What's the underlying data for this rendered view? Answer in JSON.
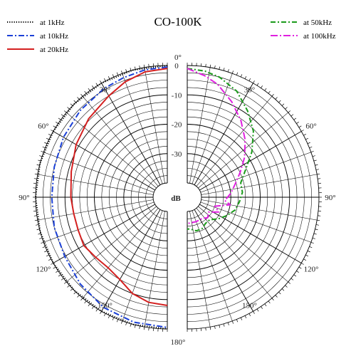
{
  "chart_data": {
    "type": "polar",
    "title": "CO-100K",
    "radial_unit": "dB",
    "radial_range_db": [
      -40,
      0
    ],
    "radial_ticks": [
      {
        "db": 0,
        "label": "0"
      },
      {
        "db": -10,
        "label": "-10"
      },
      {
        "db": -20,
        "label": "-20"
      },
      {
        "db": -30,
        "label": "-30"
      }
    ],
    "angle_ticks": [
      {
        "deg": 0,
        "label": "0°"
      },
      {
        "deg": 30,
        "label": "30°"
      },
      {
        "deg": 60,
        "label": "60°"
      },
      {
        "deg": 90,
        "label": "90°"
      },
      {
        "deg": 120,
        "label": "120°"
      },
      {
        "deg": 150,
        "label": "150°"
      },
      {
        "deg": 180,
        "label": "180°"
      }
    ],
    "left_series": [
      {
        "name": "at 1kHz",
        "color": "#000000",
        "dash": "1.2 2",
        "width": 2,
        "points": [
          [
            0,
            0
          ],
          [
            15,
            0
          ],
          [
            30,
            0
          ],
          [
            45,
            0
          ],
          [
            60,
            0
          ],
          [
            75,
            0
          ],
          [
            90,
            0
          ],
          [
            105,
            0
          ],
          [
            120,
            0
          ],
          [
            135,
            0
          ],
          [
            150,
            0
          ],
          [
            165,
            0
          ],
          [
            180,
            0
          ]
        ]
      },
      {
        "name": "at 10kHz",
        "color": "#1a3fd6",
        "dash": "8 3 2 3",
        "width": 2,
        "points": [
          [
            0,
            -0.5
          ],
          [
            10,
            -0.8
          ],
          [
            20,
            -1.5
          ],
          [
            30,
            -2
          ],
          [
            45,
            -3
          ],
          [
            60,
            -4
          ],
          [
            75,
            -5
          ],
          [
            90,
            -5.5
          ],
          [
            105,
            -5
          ],
          [
            120,
            -4.5
          ],
          [
            135,
            -3
          ],
          [
            150,
            -1.5
          ],
          [
            165,
            -0.8
          ],
          [
            180,
            -0.5
          ]
        ]
      },
      {
        "name": "at 20kHz",
        "color": "#d42020",
        "dash": "",
        "width": 2,
        "points": [
          [
            0,
            -1
          ],
          [
            10,
            -1.5
          ],
          [
            20,
            -3
          ],
          [
            30,
            -5
          ],
          [
            45,
            -7
          ],
          [
            60,
            -9
          ],
          [
            75,
            -11
          ],
          [
            90,
            -12
          ],
          [
            100,
            -12.5
          ],
          [
            110,
            -12.5
          ],
          [
            120,
            -12
          ],
          [
            130,
            -13
          ],
          [
            140,
            -13.5
          ],
          [
            150,
            -12.5
          ],
          [
            160,
            -10
          ],
          [
            170,
            -8.5
          ],
          [
            180,
            -8
          ]
        ]
      }
    ],
    "right_series": [
      {
        "name": "at 50kHz",
        "color": "#1a9a1a",
        "dash": "7 3 2 3",
        "width": 2,
        "points": [
          [
            0,
            -1
          ],
          [
            8,
            -1.5
          ],
          [
            15,
            -2.5
          ],
          [
            25,
            -5
          ],
          [
            35,
            -9
          ],
          [
            45,
            -13
          ],
          [
            55,
            -18
          ],
          [
            65,
            -23
          ],
          [
            75,
            -26
          ],
          [
            85,
            -26
          ],
          [
            95,
            -27
          ],
          [
            105,
            -28
          ],
          [
            115,
            -30
          ],
          [
            125,
            -32
          ],
          [
            135,
            -34
          ],
          [
            145,
            -34
          ],
          [
            155,
            -33
          ],
          [
            165,
            -33
          ],
          [
            175,
            -34
          ],
          [
            180,
            -34
          ]
        ]
      },
      {
        "name": "at 100kHz",
        "color": "#e020e0",
        "dash": "10 3 2 3",
        "width": 2,
        "points": [
          [
            0,
            -1
          ],
          [
            8,
            -3
          ],
          [
            15,
            -5
          ],
          [
            25,
            -9
          ],
          [
            35,
            -13
          ],
          [
            45,
            -17
          ],
          [
            55,
            -21
          ],
          [
            65,
            -25
          ],
          [
            75,
            -28
          ],
          [
            85,
            -30
          ],
          [
            95,
            -32
          ],
          [
            100,
            -30
          ],
          [
            108,
            -35
          ],
          [
            115,
            -33
          ],
          [
            125,
            -36
          ],
          [
            135,
            -35
          ],
          [
            145,
            -36
          ],
          [
            160,
            -36
          ],
          [
            175,
            -36
          ],
          [
            180,
            -36
          ]
        ]
      }
    ]
  }
}
